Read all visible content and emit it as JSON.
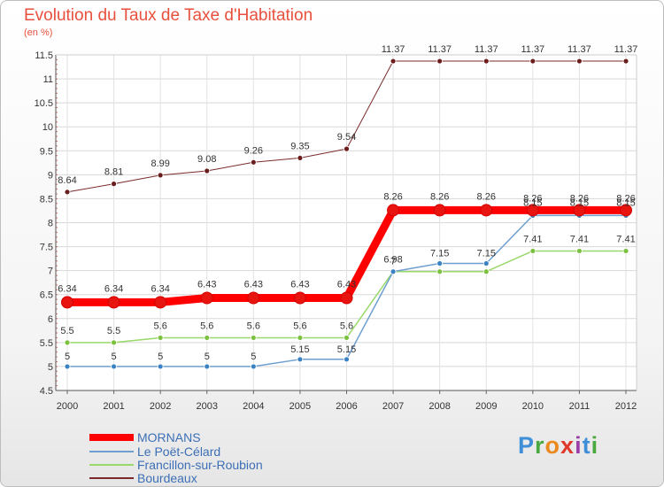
{
  "header": {
    "title": "Evolution du Taux de Taxe d'Habitation",
    "subtitle": "(en %)"
  },
  "logo": {
    "letters": [
      "P",
      "r",
      "o",
      "x",
      "i",
      "t",
      "i"
    ]
  },
  "chart_data": {
    "type": "line",
    "title": "Evolution du Taux de Taxe d'Habitation",
    "ylabel": "(en %)",
    "xlabel": "",
    "x": [
      "2000",
      "2001",
      "2002",
      "2003",
      "2004",
      "2005",
      "2006",
      "2007",
      "2008",
      "2009",
      "2010",
      "2011",
      "2012"
    ],
    "ylim": [
      4.5,
      11.5
    ],
    "yticks": [
      4.5,
      5,
      5.5,
      6,
      6.5,
      7,
      7.5,
      8,
      8.5,
      9,
      9.5,
      10,
      10.5,
      11,
      11.5
    ],
    "ytick_labels": [
      "4.5",
      "5",
      "5.5",
      "6",
      "6.5",
      "7",
      "7.5",
      "8",
      "8.5",
      "9",
      "9.5",
      "10",
      "10.5",
      "11",
      "11.5"
    ],
    "legend_position": "bottom-left",
    "series": [
      {
        "name": "MORNANS",
        "color": "#ff0000",
        "marker": "#e8140f",
        "values": [
          6.34,
          6.34,
          6.34,
          6.43,
          6.43,
          6.43,
          6.43,
          8.26,
          8.26,
          8.26,
          8.26,
          8.26,
          8.26
        ],
        "labels": [
          "6.34",
          "6.34",
          "6.34",
          "6.43",
          "6.43",
          "6.43",
          "6.43",
          "8.26",
          "8.26",
          "8.26",
          "8.26",
          "8.26",
          "8.26"
        ]
      },
      {
        "name": "Le Poët-Célard",
        "color": "#6f9fd0",
        "marker": "#3b82c4",
        "values": [
          5,
          5,
          5,
          5,
          5,
          5.15,
          5.15,
          6.98,
          7.15,
          7.15,
          8.15,
          8.15,
          8.15
        ],
        "labels": [
          "5",
          "5",
          "5",
          "5",
          "5",
          "5.15",
          "5.15",
          "7",
          "7.15",
          "7.15",
          "8.15",
          "8.15",
          "8.15"
        ]
      },
      {
        "name": "Francillon-sur-Roubion",
        "color": "#99d86a",
        "marker": "#7cc040",
        "values": [
          5.5,
          5.5,
          5.6,
          5.6,
          5.6,
          5.6,
          5.6,
          6.98,
          6.98,
          6.98,
          7.41,
          7.41,
          7.41
        ],
        "labels": [
          "5.5",
          "5.5",
          "5.6",
          "5.6",
          "5.6",
          "5.6",
          "5.6",
          "6.98",
          "",
          "",
          "7.41",
          "7.41",
          "7.41"
        ]
      },
      {
        "name": "Bourdeaux",
        "color": "#7a2a2a",
        "marker": "#6b1d1d",
        "values": [
          8.64,
          8.81,
          8.99,
          9.08,
          9.26,
          9.35,
          9.54,
          11.37,
          11.37,
          11.37,
          11.37,
          11.37,
          11.37
        ],
        "labels": [
          "8.64",
          "8.81",
          "8.99",
          "9.08",
          "9.26",
          "9.35",
          "9.54",
          "11.37",
          "11.37",
          "11.37",
          "11.37",
          "11.37",
          "11.37"
        ]
      }
    ]
  }
}
